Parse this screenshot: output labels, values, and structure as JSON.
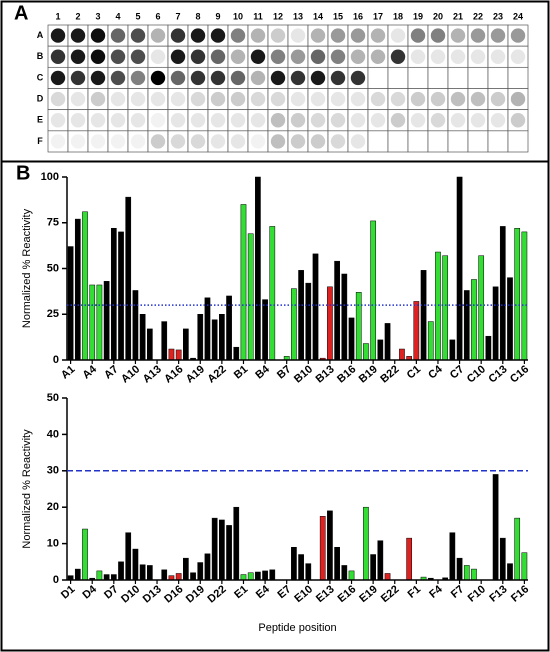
{
  "chart_data": [
    {
      "type": "heatmap",
      "panel": "A",
      "columns": [
        "1",
        "2",
        "3",
        "4",
        "5",
        "6",
        "7",
        "8",
        "9",
        "10",
        "11",
        "12",
        "13",
        "14",
        "15",
        "16",
        "17",
        "18",
        "19",
        "20",
        "21",
        "22",
        "23",
        "24"
      ],
      "rows": [
        "A",
        "B",
        "C",
        "D",
        "E",
        "F"
      ],
      "values": [
        [
          0.9,
          0.9,
          0.95,
          0.6,
          0.7,
          0.3,
          0.8,
          0.9,
          0.9,
          0.5,
          0.3,
          0.2,
          0.1,
          0.3,
          0.4,
          0.4,
          0.3,
          0.1,
          0.5,
          0.5,
          0.3,
          0.4,
          0.4,
          0.4
        ],
        [
          0.8,
          0.9,
          0.95,
          0.7,
          0.7,
          0.1,
          0.9,
          0.8,
          0.6,
          0.3,
          0.9,
          0.5,
          0.4,
          0.6,
          0.5,
          0.3,
          0.3,
          0.8,
          0.1,
          0.1,
          0.1,
          0.1,
          0.1,
          0.1
        ],
        [
          0.9,
          0.8,
          0.9,
          0.7,
          0.5,
          1,
          0.6,
          0.8,
          0.8,
          0.6,
          0.3,
          0.9,
          0.8,
          0.9,
          0.8,
          0.8,
          0,
          0,
          0,
          0,
          0,
          0,
          0,
          0
        ],
        [
          0.15,
          0.1,
          0.2,
          0.1,
          0.1,
          0.1,
          0.1,
          0.15,
          0.2,
          0.2,
          0.15,
          0.15,
          0.1,
          0.1,
          0.1,
          0.1,
          0.15,
          0.15,
          0.2,
          0.2,
          0.25,
          0.25,
          0.2,
          0.3
        ],
        [
          0.1,
          0.1,
          0.1,
          0.1,
          0.1,
          0.05,
          0.1,
          0.1,
          0.1,
          0.1,
          0.1,
          0.25,
          0.2,
          0.15,
          0.15,
          0.1,
          0.1,
          0.2,
          0.1,
          0.15,
          0.1,
          0.1,
          0.1,
          0.2
        ],
        [
          0.05,
          0.05,
          0.05,
          0.05,
          0.05,
          0.2,
          0.15,
          0.15,
          0.1,
          0.1,
          0.05,
          0.25,
          0.2,
          0.2,
          0.15,
          0.1,
          0,
          0,
          0,
          0,
          0,
          0,
          0,
          0
        ]
      ]
    },
    {
      "type": "bar",
      "panel": "B",
      "y_label": "Normalized % Reactivity",
      "categories": [
        "A1",
        null,
        null,
        "A4",
        null,
        null,
        "A7",
        null,
        null,
        "A10",
        null,
        null,
        "A13",
        null,
        null,
        "A16",
        null,
        null,
        "A19",
        null,
        null,
        "A22",
        null,
        null,
        "B1",
        null,
        null,
        "B4",
        null,
        null,
        "B7",
        null,
        null,
        "B10",
        null,
        null,
        "B13",
        null,
        null,
        "B16",
        null,
        null,
        "B19",
        null,
        null,
        "B22",
        null,
        null,
        "C1",
        null,
        null,
        "C4",
        null,
        null,
        "C7",
        null,
        null,
        "C10",
        null,
        null,
        "C13",
        null,
        null,
        "C16"
      ],
      "values": [
        62,
        77,
        81,
        41,
        41,
        43,
        72,
        70,
        89,
        38,
        25,
        17,
        0,
        21,
        6,
        5.5,
        17,
        1,
        25,
        34,
        22,
        25,
        35,
        7,
        85,
        69,
        100,
        33,
        73,
        0,
        2,
        39,
        49,
        42,
        58,
        1,
        40,
        54,
        47,
        23,
        37,
        9,
        76,
        11,
        20,
        0,
        6,
        2,
        32,
        49,
        21,
        59,
        57,
        11,
        100,
        38,
        44,
        57,
        13,
        40,
        73,
        45,
        72,
        70
      ],
      "colors": [
        "#000",
        "#000",
        "#3d3",
        "#3d3",
        "#3d3",
        "#000",
        "#000",
        "#000",
        "#000",
        "#000",
        "#000",
        "#000",
        "#000",
        "#000",
        "#d22",
        "#d22",
        "#000",
        "#000",
        "#000",
        "#000",
        "#000",
        "#000",
        "#000",
        "#000",
        "#3d3",
        "#3d3",
        "#000",
        "#000",
        "#3d3",
        "#000",
        "#3d3",
        "#3d3",
        "#000",
        "#000",
        "#000",
        "#d22",
        "#d22",
        "#000",
        "#000",
        "#000",
        "#3d3",
        "#3d3",
        "#3d3",
        "#000",
        "#000",
        "#000",
        "#d22",
        "#d22",
        "#d22",
        "#000",
        "#3d3",
        "#3d3",
        "#3d3",
        "#000",
        "#000",
        "#000",
        "#3d3",
        "#3d3",
        "#000",
        "#000",
        "#000",
        "#000",
        "#3d3",
        "#3d3"
      ],
      "ylim": [
        0,
        100
      ],
      "yticks": [
        0,
        25,
        50,
        75,
        100
      ],
      "reference_line": {
        "value": 30,
        "color": "#2233cc",
        "style": "dotted"
      }
    },
    {
      "type": "bar",
      "y_label": "Normalized % Reactivity",
      "x_label": "Peptide position",
      "categories": [
        "D1",
        null,
        null,
        "D4",
        null,
        null,
        "D7",
        null,
        null,
        "D10",
        null,
        null,
        "D13",
        null,
        null,
        "D16",
        null,
        null,
        "D19",
        null,
        null,
        "D22",
        null,
        null,
        "E1",
        null,
        null,
        "E4",
        null,
        null,
        "E7",
        null,
        null,
        "E10",
        null,
        null,
        "E13",
        null,
        null,
        "E16",
        null,
        null,
        "E19",
        null,
        null,
        "E22",
        null,
        null,
        "F1",
        null,
        null,
        "F4",
        null,
        null,
        "F7",
        null,
        null,
        "F10",
        null,
        null,
        "F13",
        null,
        null,
        "F16"
      ],
      "values": [
        1.2,
        3,
        14,
        0.5,
        2.5,
        1.5,
        1.5,
        5,
        13,
        8.5,
        4.2,
        4,
        0,
        2.8,
        1.2,
        1.8,
        6,
        2,
        4.8,
        7.2,
        17,
        16.5,
        15,
        20,
        1.5,
        2,
        2.2,
        2.5,
        2.8,
        0,
        0,
        9,
        7,
        4.5,
        0,
        17.5,
        19,
        9,
        4,
        2.5,
        0,
        20,
        7,
        10.8,
        1.8,
        0,
        0,
        11.5,
        0,
        0.8,
        0.5,
        0,
        0.6,
        13,
        6,
        4,
        3,
        0,
        0,
        29,
        11.5,
        4.5,
        17,
        7.5
      ],
      "colors": [
        "#000",
        "#000",
        "#3d3",
        "#000",
        "#3d3",
        "#000",
        "#000",
        "#000",
        "#000",
        "#000",
        "#000",
        "#000",
        "#000",
        "#000",
        "#d22",
        "#d22",
        "#000",
        "#000",
        "#000",
        "#000",
        "#000",
        "#000",
        "#000",
        "#000",
        "#3d3",
        "#3d3",
        "#000",
        "#000",
        "#000",
        "#000",
        "#000",
        "#000",
        "#000",
        "#000",
        "#000",
        "#d22",
        "#000",
        "#000",
        "#000",
        "#3d3",
        "#000",
        "#3d3",
        "#000",
        "#000",
        "#d22",
        "#000",
        "#000",
        "#d22",
        "#000",
        "#3d3",
        "#000",
        "#000",
        "#000",
        "#000",
        "#000",
        "#3d3",
        "#3d3",
        "#000",
        "#000",
        "#000",
        "#000",
        "#000",
        "#3d3",
        "#3d3"
      ],
      "ylim": [
        0,
        50
      ],
      "yticks": [
        0,
        10,
        20,
        30,
        40,
        50
      ],
      "reference_line": {
        "value": 30,
        "color": "#2233cc",
        "style": "dashed"
      }
    }
  ]
}
